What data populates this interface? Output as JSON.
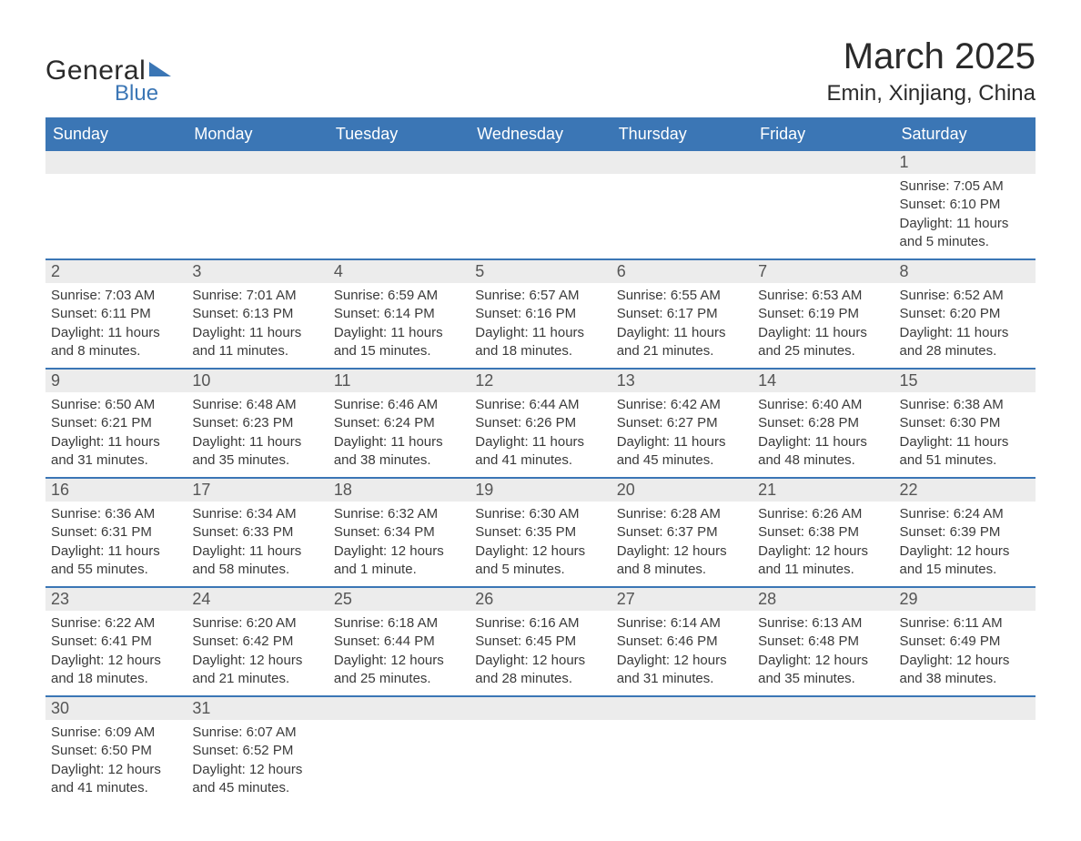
{
  "logo": {
    "top": "General",
    "bottom": "Blue"
  },
  "title": {
    "month": "March 2025",
    "location": "Emin, Xinjiang, China"
  },
  "colors": {
    "header_bg": "#3b76b5",
    "header_text": "#ffffff",
    "daynum_bg": "#ececec",
    "row_border": "#3b76b5",
    "body_text": "#3a3a3a",
    "page_bg": "#ffffff"
  },
  "typography": {
    "title_fontsize": 40,
    "location_fontsize": 24,
    "dayheader_fontsize": 18,
    "daynum_fontsize": 18,
    "detail_fontsize": 15,
    "font_family": "Arial"
  },
  "calendar": {
    "type": "table",
    "columns": [
      "Sunday",
      "Monday",
      "Tuesday",
      "Wednesday",
      "Thursday",
      "Friday",
      "Saturday"
    ],
    "weeks": [
      [
        null,
        null,
        null,
        null,
        null,
        null,
        {
          "n": "1",
          "sunrise": "7:05 AM",
          "sunset": "6:10 PM",
          "daylight": "11 hours and 5 minutes."
        }
      ],
      [
        {
          "n": "2",
          "sunrise": "7:03 AM",
          "sunset": "6:11 PM",
          "daylight": "11 hours and 8 minutes."
        },
        {
          "n": "3",
          "sunrise": "7:01 AM",
          "sunset": "6:13 PM",
          "daylight": "11 hours and 11 minutes."
        },
        {
          "n": "4",
          "sunrise": "6:59 AM",
          "sunset": "6:14 PM",
          "daylight": "11 hours and 15 minutes."
        },
        {
          "n": "5",
          "sunrise": "6:57 AM",
          "sunset": "6:16 PM",
          "daylight": "11 hours and 18 minutes."
        },
        {
          "n": "6",
          "sunrise": "6:55 AM",
          "sunset": "6:17 PM",
          "daylight": "11 hours and 21 minutes."
        },
        {
          "n": "7",
          "sunrise": "6:53 AM",
          "sunset": "6:19 PM",
          "daylight": "11 hours and 25 minutes."
        },
        {
          "n": "8",
          "sunrise": "6:52 AM",
          "sunset": "6:20 PM",
          "daylight": "11 hours and 28 minutes."
        }
      ],
      [
        {
          "n": "9",
          "sunrise": "6:50 AM",
          "sunset": "6:21 PM",
          "daylight": "11 hours and 31 minutes."
        },
        {
          "n": "10",
          "sunrise": "6:48 AM",
          "sunset": "6:23 PM",
          "daylight": "11 hours and 35 minutes."
        },
        {
          "n": "11",
          "sunrise": "6:46 AM",
          "sunset": "6:24 PM",
          "daylight": "11 hours and 38 minutes."
        },
        {
          "n": "12",
          "sunrise": "6:44 AM",
          "sunset": "6:26 PM",
          "daylight": "11 hours and 41 minutes."
        },
        {
          "n": "13",
          "sunrise": "6:42 AM",
          "sunset": "6:27 PM",
          "daylight": "11 hours and 45 minutes."
        },
        {
          "n": "14",
          "sunrise": "6:40 AM",
          "sunset": "6:28 PM",
          "daylight": "11 hours and 48 minutes."
        },
        {
          "n": "15",
          "sunrise": "6:38 AM",
          "sunset": "6:30 PM",
          "daylight": "11 hours and 51 minutes."
        }
      ],
      [
        {
          "n": "16",
          "sunrise": "6:36 AM",
          "sunset": "6:31 PM",
          "daylight": "11 hours and 55 minutes."
        },
        {
          "n": "17",
          "sunrise": "6:34 AM",
          "sunset": "6:33 PM",
          "daylight": "11 hours and 58 minutes."
        },
        {
          "n": "18",
          "sunrise": "6:32 AM",
          "sunset": "6:34 PM",
          "daylight": "12 hours and 1 minute."
        },
        {
          "n": "19",
          "sunrise": "6:30 AM",
          "sunset": "6:35 PM",
          "daylight": "12 hours and 5 minutes."
        },
        {
          "n": "20",
          "sunrise": "6:28 AM",
          "sunset": "6:37 PM",
          "daylight": "12 hours and 8 minutes."
        },
        {
          "n": "21",
          "sunrise": "6:26 AM",
          "sunset": "6:38 PM",
          "daylight": "12 hours and 11 minutes."
        },
        {
          "n": "22",
          "sunrise": "6:24 AM",
          "sunset": "6:39 PM",
          "daylight": "12 hours and 15 minutes."
        }
      ],
      [
        {
          "n": "23",
          "sunrise": "6:22 AM",
          "sunset": "6:41 PM",
          "daylight": "12 hours and 18 minutes."
        },
        {
          "n": "24",
          "sunrise": "6:20 AM",
          "sunset": "6:42 PM",
          "daylight": "12 hours and 21 minutes."
        },
        {
          "n": "25",
          "sunrise": "6:18 AM",
          "sunset": "6:44 PM",
          "daylight": "12 hours and 25 minutes."
        },
        {
          "n": "26",
          "sunrise": "6:16 AM",
          "sunset": "6:45 PM",
          "daylight": "12 hours and 28 minutes."
        },
        {
          "n": "27",
          "sunrise": "6:14 AM",
          "sunset": "6:46 PM",
          "daylight": "12 hours and 31 minutes."
        },
        {
          "n": "28",
          "sunrise": "6:13 AM",
          "sunset": "6:48 PM",
          "daylight": "12 hours and 35 minutes."
        },
        {
          "n": "29",
          "sunrise": "6:11 AM",
          "sunset": "6:49 PM",
          "daylight": "12 hours and 38 minutes."
        }
      ],
      [
        {
          "n": "30",
          "sunrise": "6:09 AM",
          "sunset": "6:50 PM",
          "daylight": "12 hours and 41 minutes."
        },
        {
          "n": "31",
          "sunrise": "6:07 AM",
          "sunset": "6:52 PM",
          "daylight": "12 hours and 45 minutes."
        },
        null,
        null,
        null,
        null,
        null
      ]
    ],
    "labels": {
      "sunrise": "Sunrise:",
      "sunset": "Sunset:",
      "daylight": "Daylight:"
    }
  }
}
